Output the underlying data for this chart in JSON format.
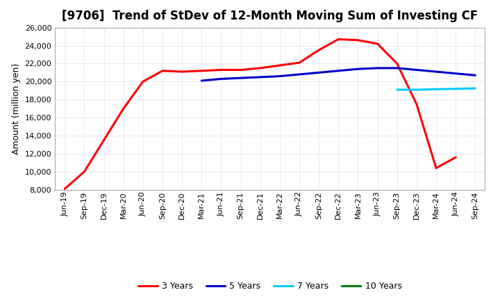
{
  "title": "[9706]  Trend of StDev of 12-Month Moving Sum of Investing CF",
  "ylabel": "Amount (million yen)",
  "ylim": [
    8000,
    26000
  ],
  "yticks": [
    8000,
    10000,
    12000,
    14000,
    16000,
    18000,
    20000,
    22000,
    24000,
    26000
  ],
  "xtick_labels": [
    "Jun-19",
    "Sep-19",
    "Dec-19",
    "Mar-20",
    "Jun-20",
    "Sep-20",
    "Dec-20",
    "Mar-21",
    "Jun-21",
    "Sep-21",
    "Dec-21",
    "Mar-22",
    "Jun-22",
    "Sep-22",
    "Dec-22",
    "Mar-23",
    "Jun-23",
    "Sep-23",
    "Dec-23",
    "Mar-24",
    "Jun-24",
    "Sep-24"
  ],
  "series": {
    "3 Years": {
      "color": "#FF0000",
      "x": [
        0,
        1,
        2,
        3,
        4,
        5,
        6,
        7,
        8,
        9,
        10,
        11,
        12,
        13,
        14,
        15,
        16,
        17,
        18,
        19,
        20
      ],
      "y": [
        8100,
        10000,
        13500,
        17000,
        20000,
        21200,
        21100,
        21200,
        21300,
        21300,
        21500,
        21800,
        22100,
        23500,
        24700,
        24600,
        24200,
        22000,
        17500,
        10400,
        11600
      ]
    },
    "5 Years": {
      "color": "#0000CC",
      "x": [
        7,
        8,
        9,
        10,
        11,
        12,
        13,
        14,
        15,
        16,
        17,
        18,
        19,
        20,
        21
      ],
      "y": [
        20100,
        20300,
        20400,
        20500,
        20600,
        20800,
        21000,
        21200,
        21400,
        21500,
        21500,
        21300,
        21100,
        20900,
        20700
      ]
    },
    "7 Years": {
      "color": "#00CCFF",
      "x": [
        17,
        18,
        19,
        20,
        21
      ],
      "y": [
        19100,
        19100,
        19150,
        19200,
        19250
      ]
    },
    "10 Years": {
      "color": "#008000",
      "x": [],
      "y": []
    }
  },
  "background_color": "#FFFFFF",
  "grid_color": "#AAAACC",
  "title_fontsize": 12,
  "axis_fontsize": 9,
  "tick_fontsize": 8,
  "legend_fontsize": 9
}
